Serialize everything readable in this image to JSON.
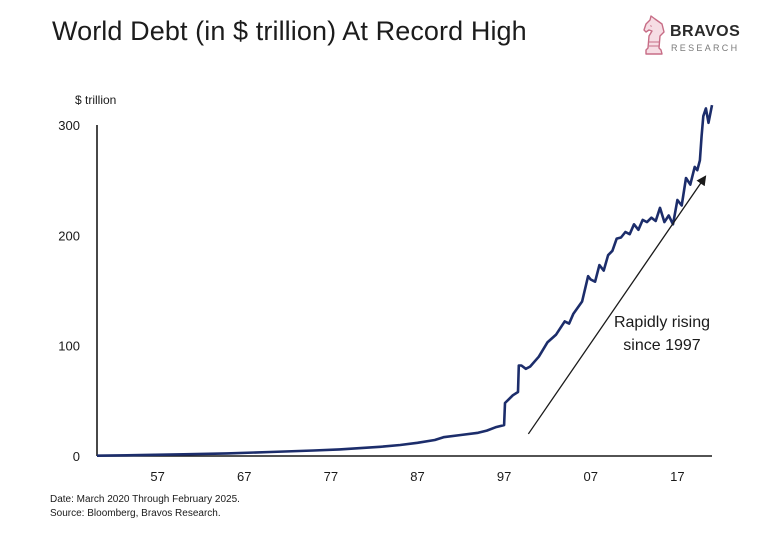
{
  "title": "World Debt (in $ trillion) At Record High",
  "logo": {
    "name": "BRAVOS",
    "sub": "RESEARCH",
    "icon": "knight-chess-piece-icon",
    "color": "#c76d86"
  },
  "footer": {
    "date_note": "Date: March 2020 Through February 2025.",
    "source_note": "Source: Bloomberg, Bravos Research."
  },
  "chart_data": {
    "type": "line",
    "title": "World Debt (in $ trillion) At Record High",
    "ylabel": "$ trillion",
    "xlabel": "",
    "ylim": [
      0,
      300
    ],
    "xlim": [
      1950,
      2021
    ],
    "y_ticks": [
      0,
      100,
      200,
      300
    ],
    "y_tick_labels": [
      "0",
      "100",
      "200",
      "300"
    ],
    "x_ticks": [
      1957,
      1967,
      1977,
      1987,
      1997,
      2007,
      2017
    ],
    "x_tick_labels": [
      "57",
      "67",
      "77",
      "87",
      "97",
      "07",
      "17"
    ],
    "grid": false,
    "line_color": "#1c2d6b",
    "annotation": {
      "lines": [
        "Rapidly rising",
        "since 1997"
      ],
      "arrow_from": [
        1999.8,
        20
      ],
      "arrow_to": [
        2020.2,
        253
      ]
    },
    "series": [
      {
        "x": [
          1950,
          1955,
          1960,
          1965,
          1970,
          1975,
          1978,
          1980,
          1983,
          1985,
          1987,
          1989,
          1990,
          1992,
          1994,
          1995,
          1996,
          1997,
          1997.1,
          1997.5,
          1998,
          1998.6,
          1998.7,
          1999,
          1999.5,
          2000,
          2001,
          2002,
          2003,
          2004,
          2004.5,
          2005,
          2006,
          2006.7,
          2007,
          2007.5,
          2008,
          2008.5,
          2009,
          2009.5,
          2010,
          2010.5,
          2011,
          2011.5,
          2012,
          2012.5,
          2013,
          2013.5,
          2014,
          2014.5,
          2015,
          2015.5,
          2016,
          2016.5,
          2017,
          2017.5,
          2018,
          2018.5,
          2019,
          2019.3,
          2019.6,
          2019.8,
          2020,
          2020.3,
          2020.6,
          2021
        ],
        "values": [
          0.3,
          0.8,
          1.5,
          2.4,
          3.6,
          5.0,
          6.0,
          7.0,
          8.5,
          10.0,
          12.0,
          14.5,
          17.0,
          19.0,
          21.0,
          23.0,
          26.0,
          28.0,
          48.0,
          51.0,
          55.0,
          58.0,
          82.0,
          82.0,
          79.0,
          81.0,
          90.0,
          103.0,
          110.0,
          122.0,
          120.0,
          129.0,
          140.0,
          163.0,
          160.0,
          158.0,
          173.0,
          168.0,
          182.0,
          186.0,
          197.0,
          198.0,
          203.0,
          201.0,
          210.0,
          205.0,
          214.0,
          212.0,
          216.0,
          213.0,
          225.0,
          212.0,
          218.0,
          210.0,
          232.0,
          227.0,
          252.0,
          246.0,
          262.0,
          259.0,
          268.0,
          290.0,
          308.0,
          315.0,
          302.0,
          318.0
        ]
      }
    ]
  }
}
